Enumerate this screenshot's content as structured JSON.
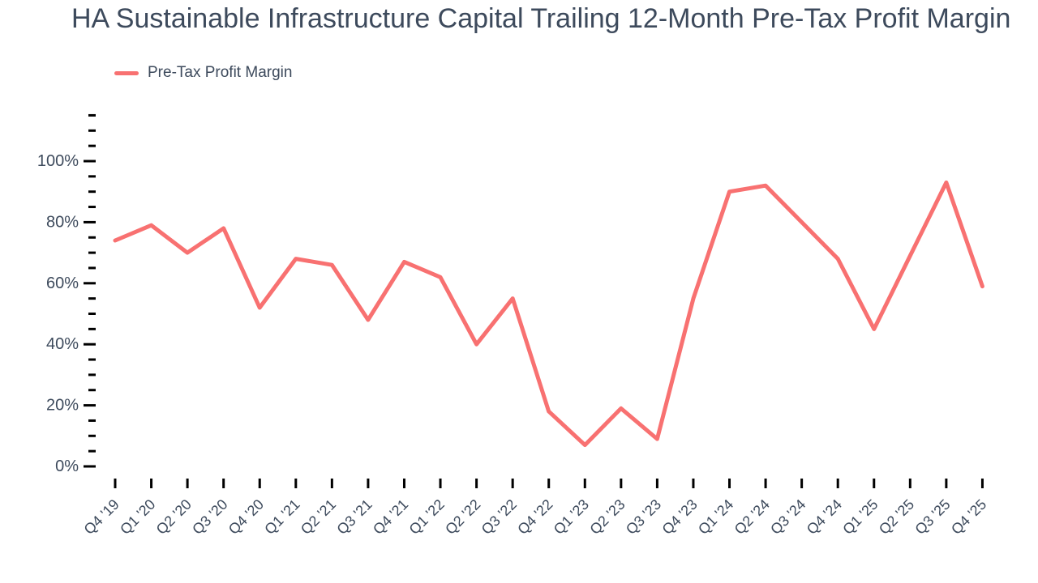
{
  "chart_data": {
    "type": "line",
    "title": "HA Sustainable Infrastructure Capital Trailing 12-Month Pre-Tax Profit Margin",
    "xlabel": "",
    "ylabel": "",
    "grid": false,
    "legend_position": "top-left",
    "categories": [
      "Q4 '19",
      "Q1 '20",
      "Q2 '20",
      "Q3 '20",
      "Q4 '20",
      "Q1 '21",
      "Q2 '21",
      "Q3 '21",
      "Q4 '21",
      "Q1 '22",
      "Q2 '22",
      "Q3 '22",
      "Q4 '22",
      "Q1 '23",
      "Q2 '23",
      "Q3 '23",
      "Q4 '23",
      "Q1 '24",
      "Q2 '24",
      "Q3 '24",
      "Q4 '24",
      "Q1 '25",
      "Q2 '25",
      "Q3 '25",
      "Q4 '25"
    ],
    "series": [
      {
        "name": "Pre-Tax Profit Margin",
        "color": "#f87171",
        "values": [
          74,
          79,
          70,
          78,
          52,
          68,
          66,
          48,
          67,
          62,
          40,
          55,
          18,
          7,
          19,
          9,
          55,
          90,
          92,
          80,
          68,
          45,
          69,
          93,
          59
        ]
      }
    ],
    "y_axis": {
      "min": 0,
      "max": 115,
      "major_step": 20,
      "minor_step": 5,
      "major_label_max": 100,
      "tick_suffix": "%"
    },
    "ylim": [
      0,
      115
    ],
    "colors": {
      "line": "#f87171",
      "text": "#3d4a5c",
      "tick": "#000000",
      "background": "#ffffff"
    }
  }
}
